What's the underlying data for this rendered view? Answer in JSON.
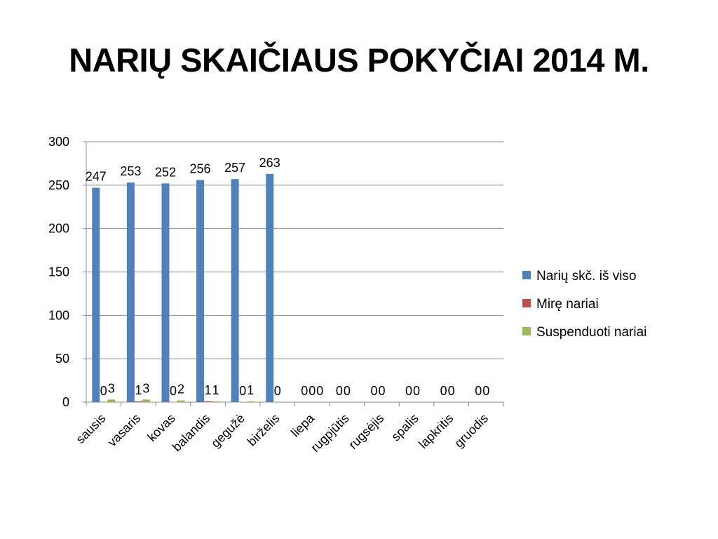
{
  "title": "NARIŲ SKAIČIAUS POKYČIAI 2014 M.",
  "chart_data": {
    "type": "bar",
    "title": "NARIŲ SKAIČIAUS POKYČIAI 2014 M.",
    "xlabel": "",
    "ylabel": "",
    "ylim": [
      0,
      300
    ],
    "yticks": [
      0,
      50,
      100,
      150,
      200,
      250,
      300
    ],
    "grid": true,
    "legend_position": "right",
    "categories": [
      "sausis",
      "vasaris",
      "kovas",
      "balandis",
      "gegužė",
      "birželis",
      "liepa",
      "rugpjūtis",
      "rugsėjis",
      "spalis",
      "lapkritis",
      "gruodis"
    ],
    "series": [
      {
        "name": "Narių skč. iš viso",
        "color": "#4F81BD",
        "values": [
          247,
          253,
          252,
          256,
          257,
          263,
          0,
          0,
          0,
          0,
          0,
          0
        ]
      },
      {
        "name": "Mirę nariai",
        "color": "#C0504D",
        "values": [
          0,
          1,
          0,
          1,
          0,
          0,
          0,
          0,
          0,
          0,
          0,
          0
        ]
      },
      {
        "name": "Suspenduoti nariai",
        "color": "#9BBB59",
        "values": [
          3,
          3,
          2,
          1,
          1,
          0,
          0,
          0,
          0,
          0,
          0,
          0
        ]
      }
    ],
    "data_labels": [
      [
        "247",
        "253",
        "252",
        "256",
        "257",
        "263",
        "0",
        "0",
        "0",
        "0",
        "0",
        "0"
      ],
      [
        "0",
        "1",
        "0",
        "1",
        "0",
        "0",
        "0",
        "0",
        "0",
        "0",
        "0",
        "0"
      ],
      [
        "3",
        "3",
        "2",
        "1",
        "1",
        "",
        "0",
        "",
        "",
        "",
        "",
        ""
      ]
    ]
  }
}
